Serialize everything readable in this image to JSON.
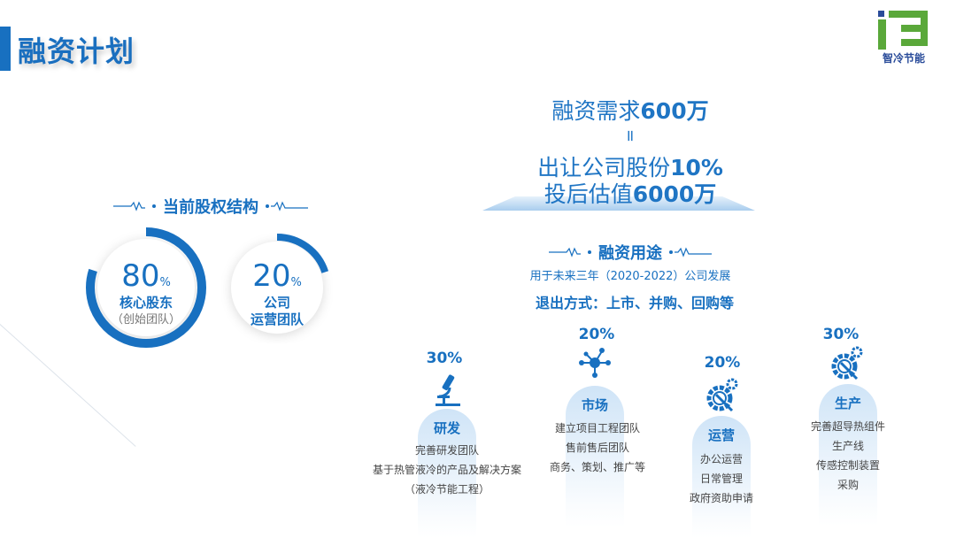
{
  "title": "融资计划",
  "logo": {
    "text": "智冷节能",
    "colors": {
      "green": "#5aa83a",
      "blue": "#2a4c9a"
    }
  },
  "summary": {
    "line1_prefix": "融资需求",
    "line1_value": "600万",
    "equals": "=",
    "line2_prefix": "出让公司股份",
    "line2_value": "10%",
    "line3_prefix": "投后估值",
    "line3_value": "6000万"
  },
  "equity": {
    "heading": "当前股权结构",
    "items": [
      {
        "value": "80",
        "unit": "%",
        "label": "核心股东",
        "sub": "（创始团队）",
        "fraction": 0.8
      },
      {
        "value": "20",
        "unit": "%",
        "label": "公司",
        "sub": "运营团队",
        "fraction": 0.2
      }
    ]
  },
  "usage": {
    "heading": "融资用途",
    "subtitle": "用于未来三年（2020-2022）公司发展",
    "exit": "退出方式：上市、并购、回购等",
    "columns": [
      {
        "percent": "30%",
        "icon": "microscope-icon",
        "title": "研发",
        "lines": [
          "完善研发团队",
          "基于热管液冷的产品及解决方案",
          "（液冷节能工程）"
        ]
      },
      {
        "percent": "20%",
        "icon": "network-icon",
        "title": "市场",
        "lines": [
          "建立项目工程团队",
          "售前售后团队",
          "商务、策划、推广等"
        ]
      },
      {
        "percent": "20%",
        "icon": "gear-wrench-icon",
        "title": "运营",
        "lines": [
          "办公运营",
          "日常管理",
          "政府资助申请"
        ]
      },
      {
        "percent": "30%",
        "icon": "gear-wrench-icon",
        "title": "生产",
        "lines": [
          "完善超导热组件",
          "生产线",
          "传感控制装置",
          "采购"
        ]
      }
    ]
  },
  "colors": {
    "accent": "#1870c0",
    "text": "#444444"
  }
}
